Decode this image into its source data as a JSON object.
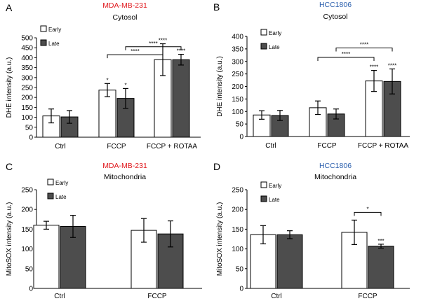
{
  "colors": {
    "early": "#ffffff",
    "late": "#4d4d4d",
    "line": "#000000",
    "accent_red": "#e0191e",
    "accent_blue": "#2b5fad"
  },
  "chart_data": [
    {
      "panel": "A",
      "type": "bar",
      "title": "MDA-MB-231",
      "title_color": "#e0191e",
      "subtitle": "Cytosol",
      "ylabel": "DHE intensity (a.u.)",
      "ylim": [
        0,
        500
      ],
      "yticks": [
        0,
        50,
        100,
        150,
        200,
        250,
        300,
        350,
        400,
        450,
        500
      ],
      "categories": [
        "Ctrl",
        "FCCP",
        "FCCP + ROTAA"
      ],
      "series": [
        {
          "name": "Early",
          "values": [
            107,
            237,
            390
          ],
          "errors": [
            35,
            33,
            80
          ],
          "labels": [
            "",
            "*",
            "****"
          ]
        },
        {
          "name": "Late",
          "values": [
            102,
            195,
            390
          ],
          "errors": [
            32,
            50,
            27
          ],
          "labels": [
            "",
            "*",
            "****"
          ]
        }
      ],
      "brackets": [
        {
          "from": "FCCP",
          "to": "FCCP + ROTAA",
          "label": "****"
        },
        {
          "from": "FCCP",
          "to": "FCCP + ROTAA",
          "label": "****"
        }
      ],
      "legend": "top-left"
    },
    {
      "panel": "B",
      "type": "bar",
      "title": "HCC1806",
      "title_color": "#2b5fad",
      "subtitle": "Cytosol",
      "ylabel": "DHE intensity (a.u.)",
      "ylim": [
        0,
        400
      ],
      "yticks": [
        0,
        50,
        100,
        150,
        200,
        250,
        300,
        350,
        400
      ],
      "categories": [
        "Ctrl",
        "FCCP",
        "FCCP + ROTAA"
      ],
      "series": [
        {
          "name": "Early",
          "values": [
            86,
            115,
            222
          ],
          "errors": [
            17,
            27,
            42
          ],
          "labels": [
            "",
            "",
            "****"
          ]
        },
        {
          "name": "Late",
          "values": [
            84,
            90,
            220
          ],
          "errors": [
            20,
            20,
            50
          ],
          "labels": [
            "",
            "",
            "****"
          ]
        }
      ],
      "brackets": [
        {
          "from": "FCCP",
          "to": "FCCP + ROTAA",
          "label": "****"
        },
        {
          "from": "FCCP",
          "to": "FCCP + ROTAA",
          "label": "****"
        }
      ],
      "legend": "top-left"
    },
    {
      "panel": "C",
      "type": "bar",
      "title": "MDA-MB-231",
      "title_color": "#e0191e",
      "subtitle": "Mitochondria",
      "ylabel": "MitoSOX intensity (a.u.)",
      "ylim": [
        0,
        250
      ],
      "yticks": [
        0,
        50,
        100,
        150,
        200,
        250
      ],
      "categories": [
        "Ctrl",
        "FCCP"
      ],
      "series": [
        {
          "name": "Early",
          "values": [
            160,
            147
          ],
          "errors": [
            10,
            30
          ],
          "labels": [
            "",
            ""
          ]
        },
        {
          "name": "Late",
          "values": [
            157,
            138
          ],
          "errors": [
            28,
            33
          ],
          "labels": [
            "",
            ""
          ]
        }
      ],
      "brackets": [],
      "legend": "top-left"
    },
    {
      "panel": "D",
      "type": "bar",
      "title": "HCC1806",
      "title_color": "#2b5fad",
      "subtitle": "Mitochondria",
      "ylabel": "MitoSOX intensity (a.u.)",
      "ylim": [
        0,
        250
      ],
      "yticks": [
        0,
        50,
        100,
        150,
        200,
        250
      ],
      "categories": [
        "Ctrl",
        "FCCP"
      ],
      "series": [
        {
          "name": "Early",
          "values": [
            136,
            142
          ],
          "errors": [
            23,
            31
          ],
          "labels": [
            "",
            ""
          ]
        },
        {
          "name": "Late",
          "values": [
            136,
            107
          ],
          "errors": [
            10,
            5
          ],
          "labels": [
            "",
            "***"
          ]
        }
      ],
      "brackets": [
        {
          "from": "FCCP",
          "to": "FCCP",
          "label": "*"
        }
      ],
      "legend": "top-left"
    }
  ]
}
